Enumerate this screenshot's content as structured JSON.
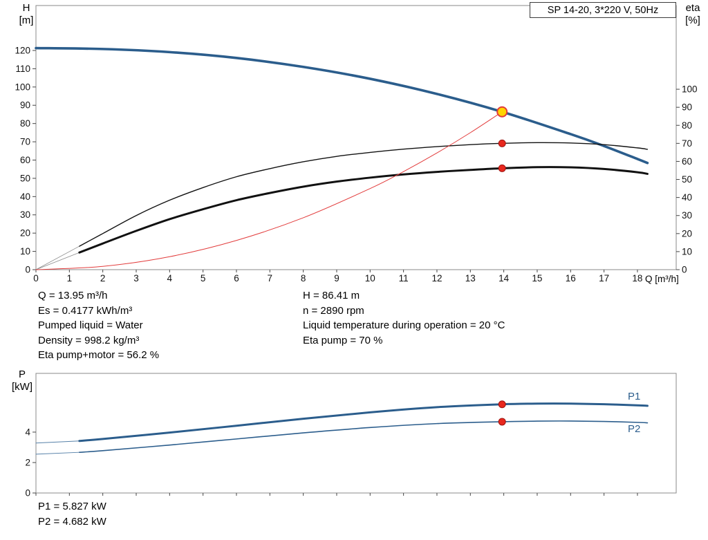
{
  "title_box": "SP 14-20, 3*220 V, 50Hz",
  "axis_labels": {
    "h": [
      "H",
      "[m]"
    ],
    "eta": [
      "eta",
      "[%]"
    ],
    "p": [
      "P",
      "[kW]"
    ],
    "q": "Q [m³/h]"
  },
  "operating_point": {
    "left": [
      "Q = 13.95 m³/h",
      "Es = 0.4177 kWh/m³",
      "Pumped liquid = Water",
      "Density = 998.2 kg/m³",
      "Eta pump+motor = 56.2 %"
    ],
    "right": [
      "H = 86.41 m",
      "n = 2890 rpm",
      "Liquid temperature during operation = 20 °C",
      "Eta pump = 70 %"
    ]
  },
  "power_values": [
    "P1 = 5.827 kW",
    "P2 = 4.682 kW"
  ],
  "curve_labels": {
    "p1": "P1",
    "p2": "P2"
  },
  "colors": {
    "pump_blue": "#2b5d8c",
    "curve_black": "#111111",
    "system_red": "#e23b3b",
    "marker_red": "#e8281e",
    "marker_yellow": "#ffd400",
    "axis_gray": "#8a8a8a"
  },
  "chart_data": [
    {
      "type": "line",
      "title": "SP 14-20, 3*220 V, 50Hz",
      "xlabel": "Q [m³/h]",
      "ylabel_left": "H [m]",
      "ylabel_right": "eta [%]",
      "xlim": [
        0,
        19.16
      ],
      "ylim_left": [
        0,
        144.6
      ],
      "ylim_right": [
        0,
        146.4
      ],
      "x_ticks": [
        0,
        1,
        2,
        3,
        4,
        5,
        6,
        7,
        8,
        9,
        10,
        11,
        12,
        13,
        14,
        15,
        16,
        17,
        18
      ],
      "y_ticks_left": [
        0,
        10,
        20,
        30,
        40,
        50,
        60,
        70,
        80,
        90,
        100,
        110,
        120
      ],
      "y_ticks_right": [
        0,
        10,
        20,
        30,
        40,
        50,
        60,
        70,
        80,
        90,
        100
      ],
      "show_x_tick_labels": true,
      "grid": false,
      "legend": "none",
      "series": [
        {
          "name": "QH",
          "axis": "left",
          "color": "#2b5d8c",
          "width": 3.6,
          "x": [
            0,
            2,
            4,
            6,
            8,
            10,
            12,
            13.95,
            16,
            17,
            18,
            18.3
          ],
          "y": [
            121.3,
            120.8,
            119.1,
            115.9,
            111.0,
            104.5,
            96.2,
            86.41,
            74.2,
            67.7,
            60.6,
            58.4
          ]
        },
        {
          "name": "eta-pump-leadin",
          "axis": "right",
          "color": "#8a8a8a",
          "width": 0.8,
          "x": [
            0,
            1.3
          ],
          "y": [
            0,
            13
          ]
        },
        {
          "name": "eta-pump",
          "axis": "right",
          "color": "#111111",
          "width": 1.4,
          "x": [
            1.3,
            2,
            3,
            4,
            5,
            6,
            7,
            8,
            9,
            10,
            11,
            12,
            13,
            13.95,
            15,
            16,
            17,
            18,
            18.3
          ],
          "y": [
            13,
            20,
            30,
            38.5,
            45.5,
            51.5,
            56,
            59.8,
            62.8,
            65,
            66.8,
            68.2,
            69.3,
            70,
            70.4,
            70.2,
            69.3,
            67.5,
            66.7
          ]
        },
        {
          "name": "eta-pump-motor-leadin",
          "axis": "right",
          "color": "#8a8a8a",
          "width": 0.8,
          "x": [
            0,
            1.3
          ],
          "y": [
            0,
            9.5
          ]
        },
        {
          "name": "eta-pump-motor",
          "axis": "right",
          "color": "#111111",
          "width": 3,
          "x": [
            1.3,
            2,
            3,
            4,
            5,
            6,
            7,
            8,
            9,
            10,
            11,
            12,
            13,
            13.95,
            15,
            16,
            17,
            18,
            18.3
          ],
          "y": [
            9.5,
            14.5,
            21.5,
            28,
            33.5,
            38.5,
            42.5,
            46,
            48.8,
            51,
            52.8,
            54.2,
            55.3,
            56.2,
            56.8,
            56.7,
            55.8,
            54,
            53.1
          ]
        },
        {
          "name": "system-curve",
          "axis": "left",
          "color": "#e23b3b",
          "width": 1,
          "x": [
            0,
            2,
            4,
            6,
            8,
            10,
            11,
            12,
            13,
            13.95
          ],
          "y": [
            0,
            1.8,
            7.1,
            16,
            28.4,
            44.4,
            53.7,
            63.9,
            75,
            86.41
          ]
        }
      ],
      "markers": [
        {
          "name": "duty-point",
          "axis": "left",
          "x": 13.95,
          "y": 86.41,
          "r": 7,
          "fill": "#ffd400",
          "stroke": "#e23b3b",
          "sw": 2
        },
        {
          "name": "eta-pump-point",
          "axis": "right",
          "x": 13.95,
          "y": 70,
          "r": 5,
          "fill": "#e8281e",
          "stroke": "#9e1410",
          "sw": 1
        },
        {
          "name": "eta-pump-motor-point",
          "axis": "right",
          "x": 13.95,
          "y": 56.2,
          "r": 5,
          "fill": "#e8281e",
          "stroke": "#9e1410",
          "sw": 1
        }
      ]
    },
    {
      "type": "line",
      "title": "",
      "xlabel": "",
      "ylabel_left": "P [kW]",
      "xlim": [
        0,
        19.16
      ],
      "ylim_left": [
        0,
        7.86
      ],
      "x_ticks": [
        0,
        1,
        2,
        3,
        4,
        5,
        6,
        7,
        8,
        9,
        10,
        11,
        12,
        13,
        14,
        15,
        16,
        17,
        18
      ],
      "y_ticks_left": [
        0,
        2,
        4
      ],
      "show_x_tick_labels": false,
      "grid": false,
      "legend": "labels-right",
      "series": [
        {
          "name": "p1-leadin",
          "axis": "left",
          "color": "#5580a8",
          "width": 1,
          "x": [
            0,
            1.3
          ],
          "y": [
            3.28,
            3.42
          ]
        },
        {
          "name": "P1",
          "axis": "left",
          "color": "#2b5d8c",
          "width": 3,
          "x": [
            1.3,
            2,
            4,
            6,
            8,
            10,
            12,
            13.95,
            15,
            16,
            17,
            18,
            18.3
          ],
          "y": [
            3.42,
            3.55,
            3.97,
            4.42,
            4.88,
            5.3,
            5.64,
            5.827,
            5.87,
            5.87,
            5.83,
            5.76,
            5.73
          ]
        },
        {
          "name": "p2-leadin",
          "axis": "left",
          "color": "#5580a8",
          "width": 0.9,
          "x": [
            0,
            1.3
          ],
          "y": [
            2.55,
            2.67
          ]
        },
        {
          "name": "P2",
          "axis": "left",
          "color": "#2b5d8c",
          "width": 1.6,
          "x": [
            1.3,
            2,
            4,
            6,
            8,
            10,
            12,
            13.95,
            15,
            16,
            17,
            18,
            18.3
          ],
          "y": [
            2.67,
            2.78,
            3.15,
            3.55,
            3.95,
            4.3,
            4.56,
            4.682,
            4.72,
            4.73,
            4.7,
            4.64,
            4.61
          ]
        }
      ],
      "markers": [
        {
          "name": "p1-point",
          "axis": "left",
          "x": 13.95,
          "y": 5.827,
          "r": 5,
          "fill": "#e8281e",
          "stroke": "#9e1410",
          "sw": 1
        },
        {
          "name": "p2-point",
          "axis": "left",
          "x": 13.95,
          "y": 4.682,
          "r": 5,
          "fill": "#e8281e",
          "stroke": "#9e1410",
          "sw": 1
        }
      ]
    }
  ]
}
